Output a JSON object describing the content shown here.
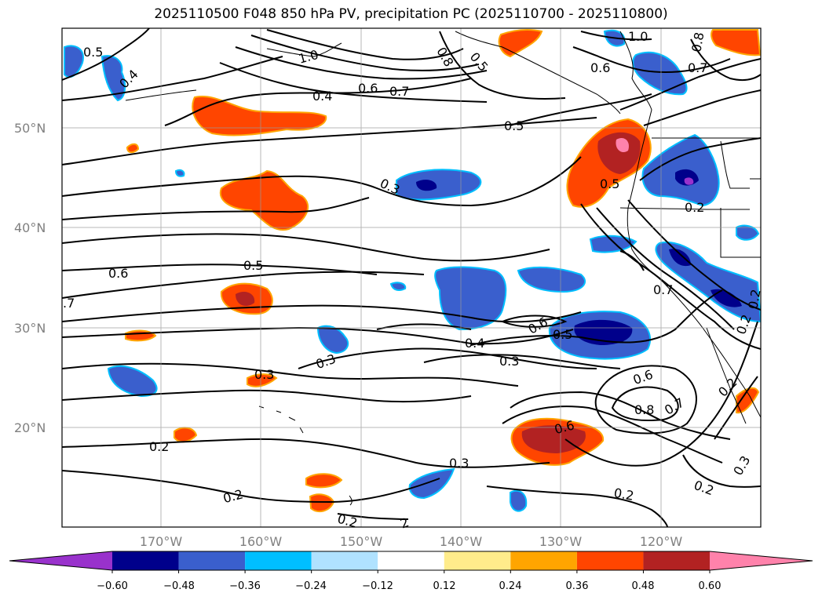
{
  "title": "2025110500 F048 850 hPa PV, precipitation PC (2025110700 - 2025110800)",
  "map": {
    "lat_labels": [
      "50°N",
      "40°N",
      "30°N",
      "20°N"
    ],
    "lon_labels": [
      "170°W",
      "160°W",
      "150°W",
      "140°W",
      "130°W",
      "120°W"
    ],
    "contour_labels": [
      {
        "text": "0.5"
      },
      {
        "text": "0.4"
      },
      {
        "text": "0.4"
      },
      {
        "text": "0.6"
      },
      {
        "text": "0.7"
      },
      {
        "text": "0.8"
      },
      {
        "text": "0.5"
      },
      {
        "text": "1.0"
      },
      {
        "text": "0.8"
      },
      {
        "text": "0.6"
      },
      {
        "text": "0.7"
      },
      {
        "text": "0.5"
      },
      {
        "text": "0.3"
      },
      {
        "text": "0.5"
      },
      {
        "text": "0.2"
      },
      {
        "text": "0.6"
      },
      {
        "text": "0.5"
      },
      {
        "text": ".7"
      },
      {
        "text": "0.7"
      },
      {
        "text": "0.2"
      },
      {
        "text": "0.6"
      },
      {
        "text": "0.5"
      },
      {
        "text": "0.4"
      },
      {
        "text": "0.3"
      },
      {
        "text": "0.3"
      },
      {
        "text": "0.3"
      },
      {
        "text": "0.6"
      },
      {
        "text": "0.8"
      },
      {
        "text": "0.7"
      },
      {
        "text": "0.2"
      },
      {
        "text": "0.6"
      },
      {
        "text": "0.2"
      },
      {
        "text": "0.3"
      },
      {
        "text": "0.2"
      },
      {
        "text": "0.2"
      },
      {
        "text": "0.2"
      },
      {
        "text": "0.3"
      },
      {
        "text": "0.2"
      },
      {
        "text": "2"
      },
      {
        "text": "0.2"
      },
      {
        "text": "1.0"
      }
    ]
  },
  "colorbar": {
    "ticks": [
      "−0.60",
      "−0.48",
      "−0.36",
      "−0.24",
      "−0.12",
      "0.12",
      "0.24",
      "0.36",
      "0.48",
      "0.60"
    ],
    "colors": [
      "#9932cc",
      "#00008b",
      "#3a5fcd",
      "#00bfff",
      "#b0e2ff",
      "#ffffff",
      "#ffec8b",
      "#ffa500",
      "#ff4500",
      "#b22222",
      "#ff82ab"
    ],
    "levels": [
      -0.6,
      -0.48,
      -0.36,
      -0.24,
      -0.12,
      0.12,
      0.24,
      0.36,
      0.48,
      0.6
    ]
  }
}
